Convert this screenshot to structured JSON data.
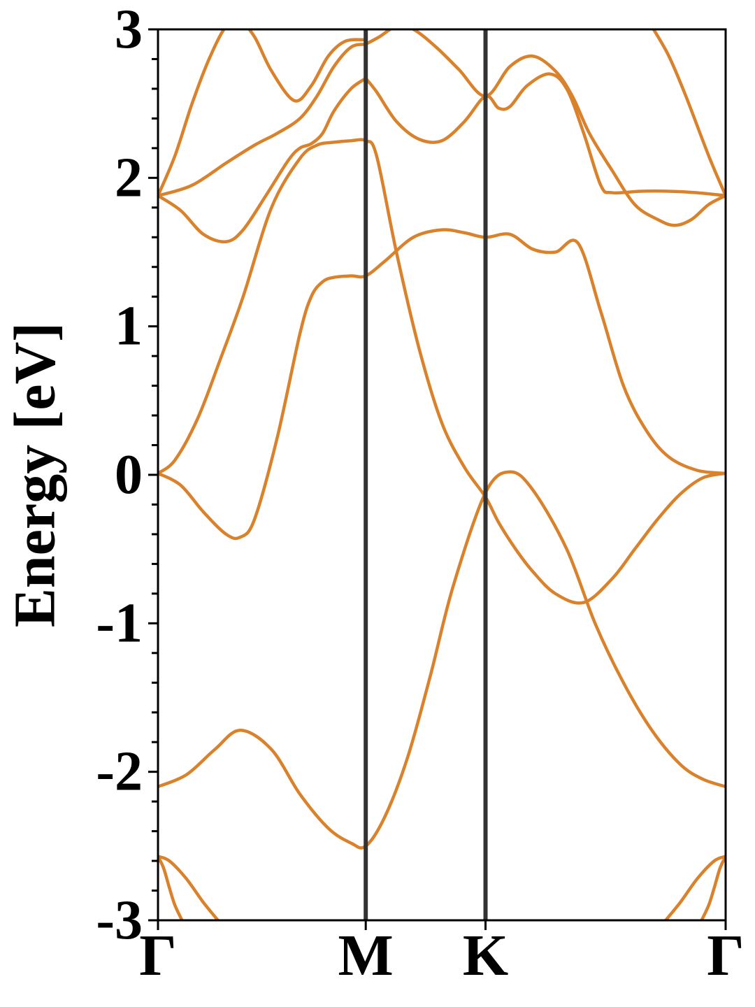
{
  "chart_data": {
    "type": "line",
    "title": "",
    "xlabel": "",
    "ylabel": "Energy [eV]",
    "ylim": [
      -3,
      3
    ],
    "y_ticks": [
      -3,
      -2,
      -1,
      0,
      1,
      2,
      3
    ],
    "y_minor_step": 0.2,
    "x_range": [
      0,
      1
    ],
    "x_ticks": [
      {
        "label": "Γ",
        "x": 0.0
      },
      {
        "label": "M",
        "x": 0.366
      },
      {
        "label": "K",
        "x": 0.577
      },
      {
        "label": "Γ",
        "x": 1.0
      }
    ],
    "vertical_lines_at": [
      0.366,
      0.577
    ],
    "grid": false,
    "legend": "none",
    "line_color": "#d9822b",
    "vline_color": "#333333",
    "series": [
      {
        "x": [
          0.0,
          0.04,
          0.08,
          0.12,
          0.145,
          0.17,
          0.21,
          0.25,
          0.27,
          0.29,
          0.31,
          0.34,
          0.366,
          0.4,
          0.45,
          0.5,
          0.54,
          0.577,
          0.62,
          0.66,
          0.7,
          0.74,
          0.78,
          0.82,
          0.86,
          0.9,
          0.95,
          1.0
        ],
        "values": [
          0.01,
          -0.07,
          -0.25,
          -0.4,
          -0.42,
          -0.3,
          0.25,
          0.95,
          1.2,
          1.3,
          1.33,
          1.34,
          1.34,
          1.44,
          1.6,
          1.65,
          1.63,
          1.6,
          1.62,
          1.52,
          1.5,
          1.56,
          1.1,
          0.6,
          0.3,
          0.12,
          0.03,
          0.01
        ]
      },
      {
        "x": [
          0.0,
          0.03,
          0.07,
          0.11,
          0.15,
          0.2,
          0.25,
          0.28,
          0.31,
          0.34,
          0.366,
          0.385,
          0.42,
          0.46,
          0.5,
          0.54,
          0.577,
          0.6,
          0.63,
          0.66,
          0.7,
          0.75,
          0.8,
          0.84,
          0.88,
          0.92,
          0.96,
          1.0
        ],
        "values": [
          0.01,
          0.1,
          0.38,
          0.78,
          1.2,
          1.8,
          2.13,
          2.22,
          2.24,
          2.25,
          2.25,
          2.15,
          1.5,
          0.85,
          0.35,
          0.05,
          -0.15,
          -0.32,
          -0.5,
          -0.65,
          -0.8,
          -0.86,
          -0.7,
          -0.5,
          -0.3,
          -0.13,
          -0.02,
          0.01
        ]
      },
      {
        "x": [
          0.0,
          0.05,
          0.1,
          0.145,
          0.2,
          0.25,
          0.3,
          0.34,
          0.366,
          0.4,
          0.44,
          0.48,
          0.52,
          0.577,
          0.62,
          0.66,
          0.72,
          0.77,
          0.82,
          0.87,
          0.92,
          0.96,
          1.0
        ],
        "values": [
          -2.1,
          -2.02,
          -1.85,
          -1.72,
          -1.85,
          -2.15,
          -2.38,
          -2.48,
          -2.5,
          -2.3,
          -1.9,
          -1.35,
          -0.75,
          -0.12,
          0.02,
          -0.1,
          -0.5,
          -1.0,
          -1.4,
          -1.72,
          -1.95,
          -2.05,
          -2.1
        ]
      },
      {
        "x": [
          0.0,
          0.04,
          0.08,
          0.12,
          0.15,
          0.19,
          0.23,
          0.25,
          0.27,
          0.29,
          0.31,
          0.34,
          0.366
        ],
        "values": [
          1.88,
          1.78,
          1.62,
          1.57,
          1.65,
          1.88,
          2.12,
          2.2,
          2.23,
          2.3,
          2.45,
          2.6,
          2.67
        ]
      },
      {
        "x": [
          0.366,
          0.385,
          0.42,
          0.46,
          0.5,
          0.54,
          0.577,
          0.6,
          0.62,
          0.65,
          0.69,
          0.72,
          0.75,
          0.78,
          0.8,
          0.85,
          0.9,
          0.95,
          1.0
        ],
        "values": [
          2.67,
          2.58,
          2.38,
          2.26,
          2.25,
          2.38,
          2.55,
          2.47,
          2.48,
          2.62,
          2.7,
          2.6,
          2.3,
          1.95,
          1.9,
          1.91,
          1.91,
          1.9,
          1.88
        ]
      },
      {
        "x": [
          0.0,
          0.06,
          0.12,
          0.17,
          0.21,
          0.25,
          0.28,
          0.31,
          0.34,
          0.366
        ],
        "values": [
          1.88,
          1.95,
          2.1,
          2.22,
          2.3,
          2.4,
          2.55,
          2.75,
          2.88,
          2.9
        ]
      },
      {
        "x": [
          0.366,
          0.39,
          0.42,
          0.45,
          0.49,
          0.53,
          0.577,
          0.62,
          0.66,
          0.7,
          0.73,
          0.76,
          0.8,
          0.84,
          0.88,
          0.91,
          0.94,
          0.97,
          1.0
        ],
        "values": [
          2.9,
          2.95,
          3.02,
          3.0,
          2.88,
          2.73,
          2.55,
          2.75,
          2.82,
          2.72,
          2.55,
          2.3,
          2.05,
          1.82,
          1.72,
          1.68,
          1.72,
          1.82,
          1.88
        ]
      },
      {
        "x": [
          0.0,
          0.03,
          0.06,
          0.09,
          0.12,
          0.145,
          0.17,
          0.2,
          0.24,
          0.27,
          0.3,
          0.33,
          0.366
        ],
        "values": [
          1.88,
          2.15,
          2.5,
          2.8,
          3.02,
          3.05,
          2.95,
          2.72,
          2.52,
          2.62,
          2.82,
          2.92,
          2.93
        ]
      },
      {
        "x": [
          0.87,
          0.9,
          0.93,
          0.97,
          1.0
        ],
        "values": [
          3.02,
          2.82,
          2.55,
          2.15,
          1.88
        ]
      },
      {
        "x": [
          0.0,
          0.02,
          0.05,
          0.08,
          0.11
        ],
        "values": [
          -2.57,
          -2.6,
          -2.72,
          -2.88,
          -3.02
        ]
      },
      {
        "x": [
          0.0,
          0.01,
          0.02,
          0.03,
          0.045
        ],
        "values": [
          -2.57,
          -2.65,
          -2.78,
          -2.9,
          -3.02
        ]
      },
      {
        "x": [
          0.89,
          0.92,
          0.95,
          0.98,
          1.0
        ],
        "values": [
          -3.02,
          -2.88,
          -2.72,
          -2.6,
          -2.57
        ]
      },
      {
        "x": [
          0.955,
          0.97,
          0.98,
          0.99,
          1.0
        ],
        "values": [
          -3.02,
          -2.9,
          -2.78,
          -2.65,
          -2.57
        ]
      }
    ]
  }
}
